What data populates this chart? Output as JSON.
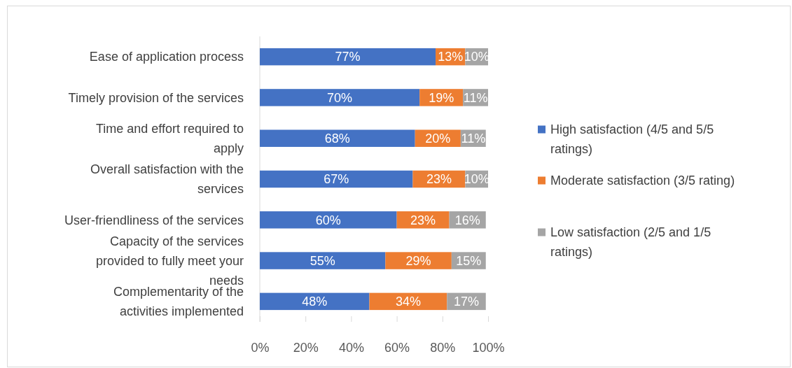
{
  "chart_data": {
    "type": "bar",
    "orientation": "horizontal",
    "stacked": true,
    "legend": "right",
    "grid": false,
    "categories": [
      "Ease of application process",
      "Timely provision of the services",
      "Time and effort required to apply",
      "Overall satisfaction with the services",
      "User-friendliness of the services",
      "Capacity of the services provided to fully meet your needs",
      "Complementarity of the activities implemented"
    ],
    "series": [
      {
        "name": "High satisfaction (4/5 and 5/5 ratings)",
        "color": "#4472c4",
        "values": [
          77,
          70,
          68,
          67,
          60,
          55,
          48
        ],
        "value_labels": [
          "77%",
          "70%",
          "68%",
          "67%",
          "60%",
          "55%",
          "48%"
        ]
      },
      {
        "name": "Moderate satisfaction (3/5 rating)",
        "color": "#ed7d31",
        "values": [
          13,
          19,
          20,
          23,
          23,
          29,
          34
        ],
        "value_labels": [
          "13%",
          "19%",
          "20%",
          "23%",
          "23%",
          "29%",
          "34%"
        ]
      },
      {
        "name": "Low satisfaction (2/5 and 1/5 ratings)",
        "color": "#a5a5a5",
        "values": [
          10,
          11,
          11,
          10,
          16,
          15,
          17
        ],
        "value_labels": [
          "10%",
          "11%",
          "11%",
          "10%",
          "16%",
          "15%",
          "17%"
        ]
      }
    ],
    "xlim": [
      0,
      100
    ],
    "xticks": [
      {
        "value": 0,
        "label": "0%"
      },
      {
        "value": 20,
        "label": "20%"
      },
      {
        "value": 40,
        "label": "40%"
      },
      {
        "value": 60,
        "label": "60%"
      },
      {
        "value": 80,
        "label": "80%"
      },
      {
        "value": 100,
        "label": "100%"
      }
    ]
  }
}
